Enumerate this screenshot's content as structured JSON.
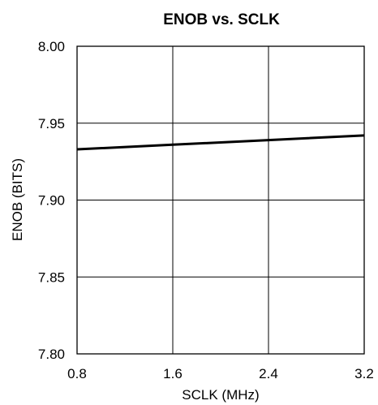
{
  "chart_data": {
    "type": "line",
    "title": "ENOB vs. SCLK",
    "xlabel": "SCLK (MHz)",
    "ylabel": "ENOB (BITS)",
    "xlim": [
      0.8,
      3.2
    ],
    "ylim": [
      7.8,
      8.0
    ],
    "x_ticks": [
      "0.8",
      "1.6",
      "2.4",
      "3.2"
    ],
    "y_ticks": [
      "8.00",
      "7.95",
      "7.90",
      "7.85",
      "7.80"
    ],
    "grid": true,
    "legend": "none",
    "line_color": "#000000",
    "series": [
      {
        "x": [
          0.8,
          1.6,
          2.4,
          3.2
        ],
        "y": [
          7.933,
          7.936,
          7.939,
          7.942
        ]
      }
    ]
  }
}
